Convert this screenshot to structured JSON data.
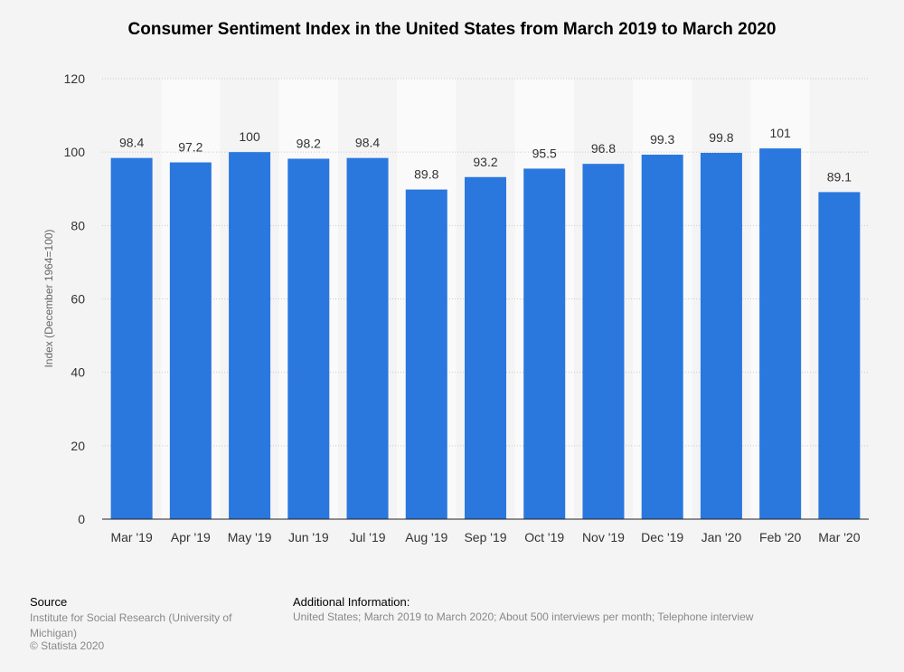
{
  "chart_data": {
    "type": "bar",
    "title": "Consumer Sentiment Index in the United States from March 2019 to March 2020",
    "xlabel": "",
    "ylabel": "Index (December 1964=100)",
    "categories": [
      "Mar '19",
      "Apr '19",
      "May '19",
      "Jun '19",
      "Jul '19",
      "Aug '19",
      "Sep '19",
      "Oct '19",
      "Nov '19",
      "Dec '19",
      "Jan '20",
      "Feb '20",
      "Mar '20"
    ],
    "values": [
      98.4,
      97.2,
      100,
      98.2,
      98.4,
      89.8,
      93.2,
      95.5,
      96.8,
      99.3,
      99.8,
      101,
      89.1
    ],
    "value_labels": [
      "98.4",
      "97.2",
      "100",
      "98.2",
      "98.4",
      "89.8",
      "93.2",
      "95.5",
      "96.8",
      "99.3",
      "99.8",
      "101",
      "89.1"
    ],
    "ylim": [
      0,
      120
    ],
    "yticks": [
      "0",
      "20",
      "40",
      "60",
      "80",
      "100",
      "120"
    ],
    "grid": true,
    "bar_color": "#2a77de"
  },
  "footer": {
    "source_title": "Source",
    "source_text": "Institute for Social Research (University of Michigan)",
    "copyright": "© Statista 2020",
    "info_title": "Additional Information:",
    "info_text": "United States; March 2019 to March 2020; About 500 interviews per month; Telephone interview"
  }
}
